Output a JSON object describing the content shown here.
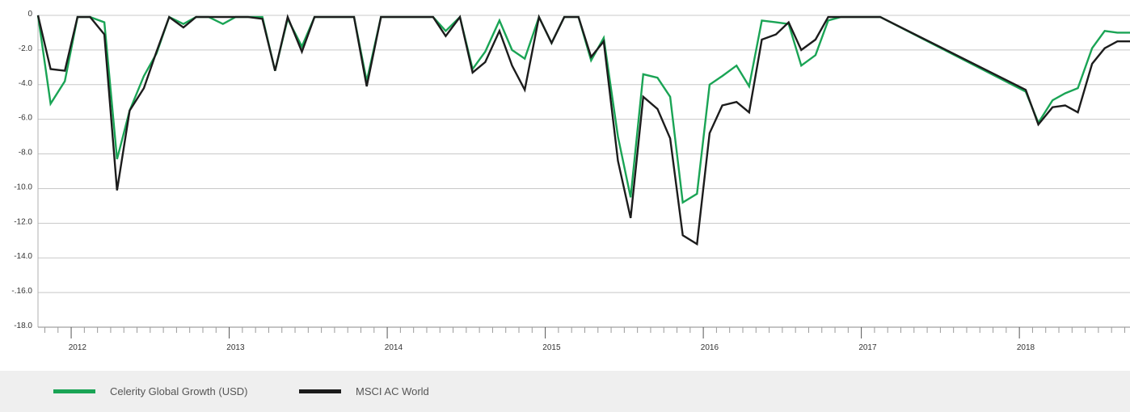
{
  "chart_data": {
    "type": "line",
    "x_ticks": [
      "2012",
      "2013",
      "2014",
      "2015",
      "2016",
      "2017",
      "2018"
    ],
    "y_ticks": [
      "0",
      "-2.0",
      "-4.0",
      "-6.0",
      "-8.0",
      "-10.0",
      "-12.0",
      "-14.0",
      "-.16.0",
      "-18.0"
    ],
    "ylim": [
      -18,
      0
    ],
    "xlim": [
      2011.79,
      2018.7
    ],
    "grid": true,
    "legend_position": "bottom",
    "series": [
      {
        "name": "Celerity Global Growth (USD)",
        "color": "#1aa455",
        "x": [
          2011.79,
          2011.87,
          2011.96,
          2012.04,
          2012.12,
          2012.21,
          2012.29,
          2012.37,
          2012.46,
          2012.54,
          2012.62,
          2012.71,
          2012.79,
          2012.87,
          2012.96,
          2013.04,
          2013.12,
          2013.21,
          2013.29,
          2013.37,
          2013.46,
          2013.54,
          2013.62,
          2013.71,
          2013.79,
          2013.87,
          2013.96,
          2014.04,
          2014.12,
          2014.21,
          2014.29,
          2014.37,
          2014.46,
          2014.54,
          2014.62,
          2014.71,
          2014.79,
          2014.87,
          2014.96,
          2015.04,
          2015.12,
          2015.21,
          2015.29,
          2015.37,
          2015.46,
          2015.54,
          2015.62,
          2015.71,
          2015.79,
          2015.87,
          2015.96,
          2016.04,
          2016.12,
          2016.21,
          2016.29,
          2016.37,
          2016.46,
          2016.54,
          2016.62,
          2016.71,
          2016.79,
          2016.87,
          2016.96,
          2017.04,
          2017.12,
          2018.04,
          2018.12,
          2018.21,
          2018.29,
          2018.37,
          2018.46,
          2018.54,
          2018.62,
          2018.7
        ],
        "values": [
          0,
          -5.1,
          -3.8,
          -0.1,
          -0.1,
          -0.4,
          -8.3,
          -5.5,
          -3.5,
          -2.2,
          -0.1,
          -0.5,
          -0.1,
          -0.1,
          -0.5,
          -0.1,
          -0.1,
          -0.1,
          -3.2,
          -0.2,
          -1.8,
          -0.1,
          -0.1,
          -0.1,
          -0.1,
          -3.8,
          -0.1,
          -0.1,
          -0.1,
          -0.1,
          -0.1,
          -0.9,
          -0.1,
          -3.1,
          -2.1,
          -0.3,
          -2.0,
          -2.5,
          -0.1,
          -1.6,
          -0.1,
          -0.1,
          -2.6,
          -1.3,
          -7.0,
          -10.5,
          -3.4,
          -3.6,
          -4.7,
          -10.8,
          -10.3,
          -4.0,
          -3.5,
          -2.9,
          -4.1,
          -0.3,
          -0.4,
          -0.5,
          -2.9,
          -2.3,
          -0.3,
          -0.1,
          -0.1,
          -0.1,
          -0.1,
          -4.4,
          -6.2,
          -4.9,
          -4.5,
          -4.2,
          -1.9,
          -0.9,
          -1.0,
          -1.0
        ]
      },
      {
        "name": "MSCI AC World",
        "color": "#1c1c1c",
        "x": [
          2011.79,
          2011.87,
          2011.96,
          2012.04,
          2012.12,
          2012.21,
          2012.29,
          2012.37,
          2012.46,
          2012.54,
          2012.62,
          2012.71,
          2012.79,
          2012.87,
          2012.96,
          2013.04,
          2013.12,
          2013.21,
          2013.29,
          2013.37,
          2013.46,
          2013.54,
          2013.62,
          2013.71,
          2013.79,
          2013.87,
          2013.96,
          2014.04,
          2014.12,
          2014.21,
          2014.29,
          2014.37,
          2014.46,
          2014.54,
          2014.62,
          2014.71,
          2014.79,
          2014.87,
          2014.96,
          2015.04,
          2015.12,
          2015.21,
          2015.29,
          2015.37,
          2015.46,
          2015.54,
          2015.62,
          2015.71,
          2015.79,
          2015.87,
          2015.96,
          2016.04,
          2016.12,
          2016.21,
          2016.29,
          2016.37,
          2016.46,
          2016.54,
          2016.62,
          2016.71,
          2016.79,
          2016.87,
          2016.96,
          2017.04,
          2017.12,
          2018.04,
          2018.12,
          2018.21,
          2018.29,
          2018.37,
          2018.46,
          2018.54,
          2018.62,
          2018.7
        ],
        "values": [
          0,
          -3.1,
          -3.2,
          -0.1,
          -0.1,
          -1.1,
          -10.1,
          -5.5,
          -4.2,
          -2.1,
          -0.1,
          -0.7,
          -0.1,
          -0.1,
          -0.1,
          -0.1,
          -0.1,
          -0.2,
          -3.2,
          -0.1,
          -2.1,
          -0.1,
          -0.1,
          -0.1,
          -0.1,
          -4.1,
          -0.1,
          -0.1,
          -0.1,
          -0.1,
          -0.1,
          -1.2,
          -0.1,
          -3.3,
          -2.7,
          -0.9,
          -2.9,
          -4.3,
          -0.1,
          -1.6,
          -0.1,
          -0.1,
          -2.4,
          -1.5,
          -8.4,
          -11.7,
          -4.7,
          -5.4,
          -7.1,
          -12.7,
          -13.2,
          -6.8,
          -5.2,
          -5.0,
          -5.6,
          -1.4,
          -1.1,
          -0.4,
          -2.0,
          -1.4,
          -0.1,
          -0.1,
          -0.1,
          -0.1,
          -0.1,
          -4.3,
          -6.3,
          -5.3,
          -5.2,
          -5.6,
          -2.8,
          -1.9,
          -1.5,
          -1.5
        ]
      }
    ]
  },
  "legend": {
    "item1": "Celerity Global Growth (USD)",
    "item2": "MSCI AC World"
  }
}
